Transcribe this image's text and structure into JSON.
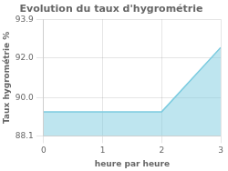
{
  "chart_data": {
    "type": "area",
    "title": "Evolution du taux d'hygrométrie",
    "xlabel": "heure par heure",
    "ylabel": "Taux hygrométrie %",
    "x": [
      0,
      1,
      2,
      3
    ],
    "values": [
      89.3,
      89.3,
      89.3,
      92.5
    ],
    "color": "#7dcce0",
    "xlim": [
      0,
      3
    ],
    "ylim": [
      88.1,
      93.9
    ],
    "xticks": [
      0,
      1,
      2,
      3
    ],
    "yticks": [
      88.1,
      {
        "value": 90.0,
        "label": "90.0"
      },
      {
        "value": 92.0,
        "label": "92.0"
      },
      93.9
    ],
    "grid": true
  }
}
